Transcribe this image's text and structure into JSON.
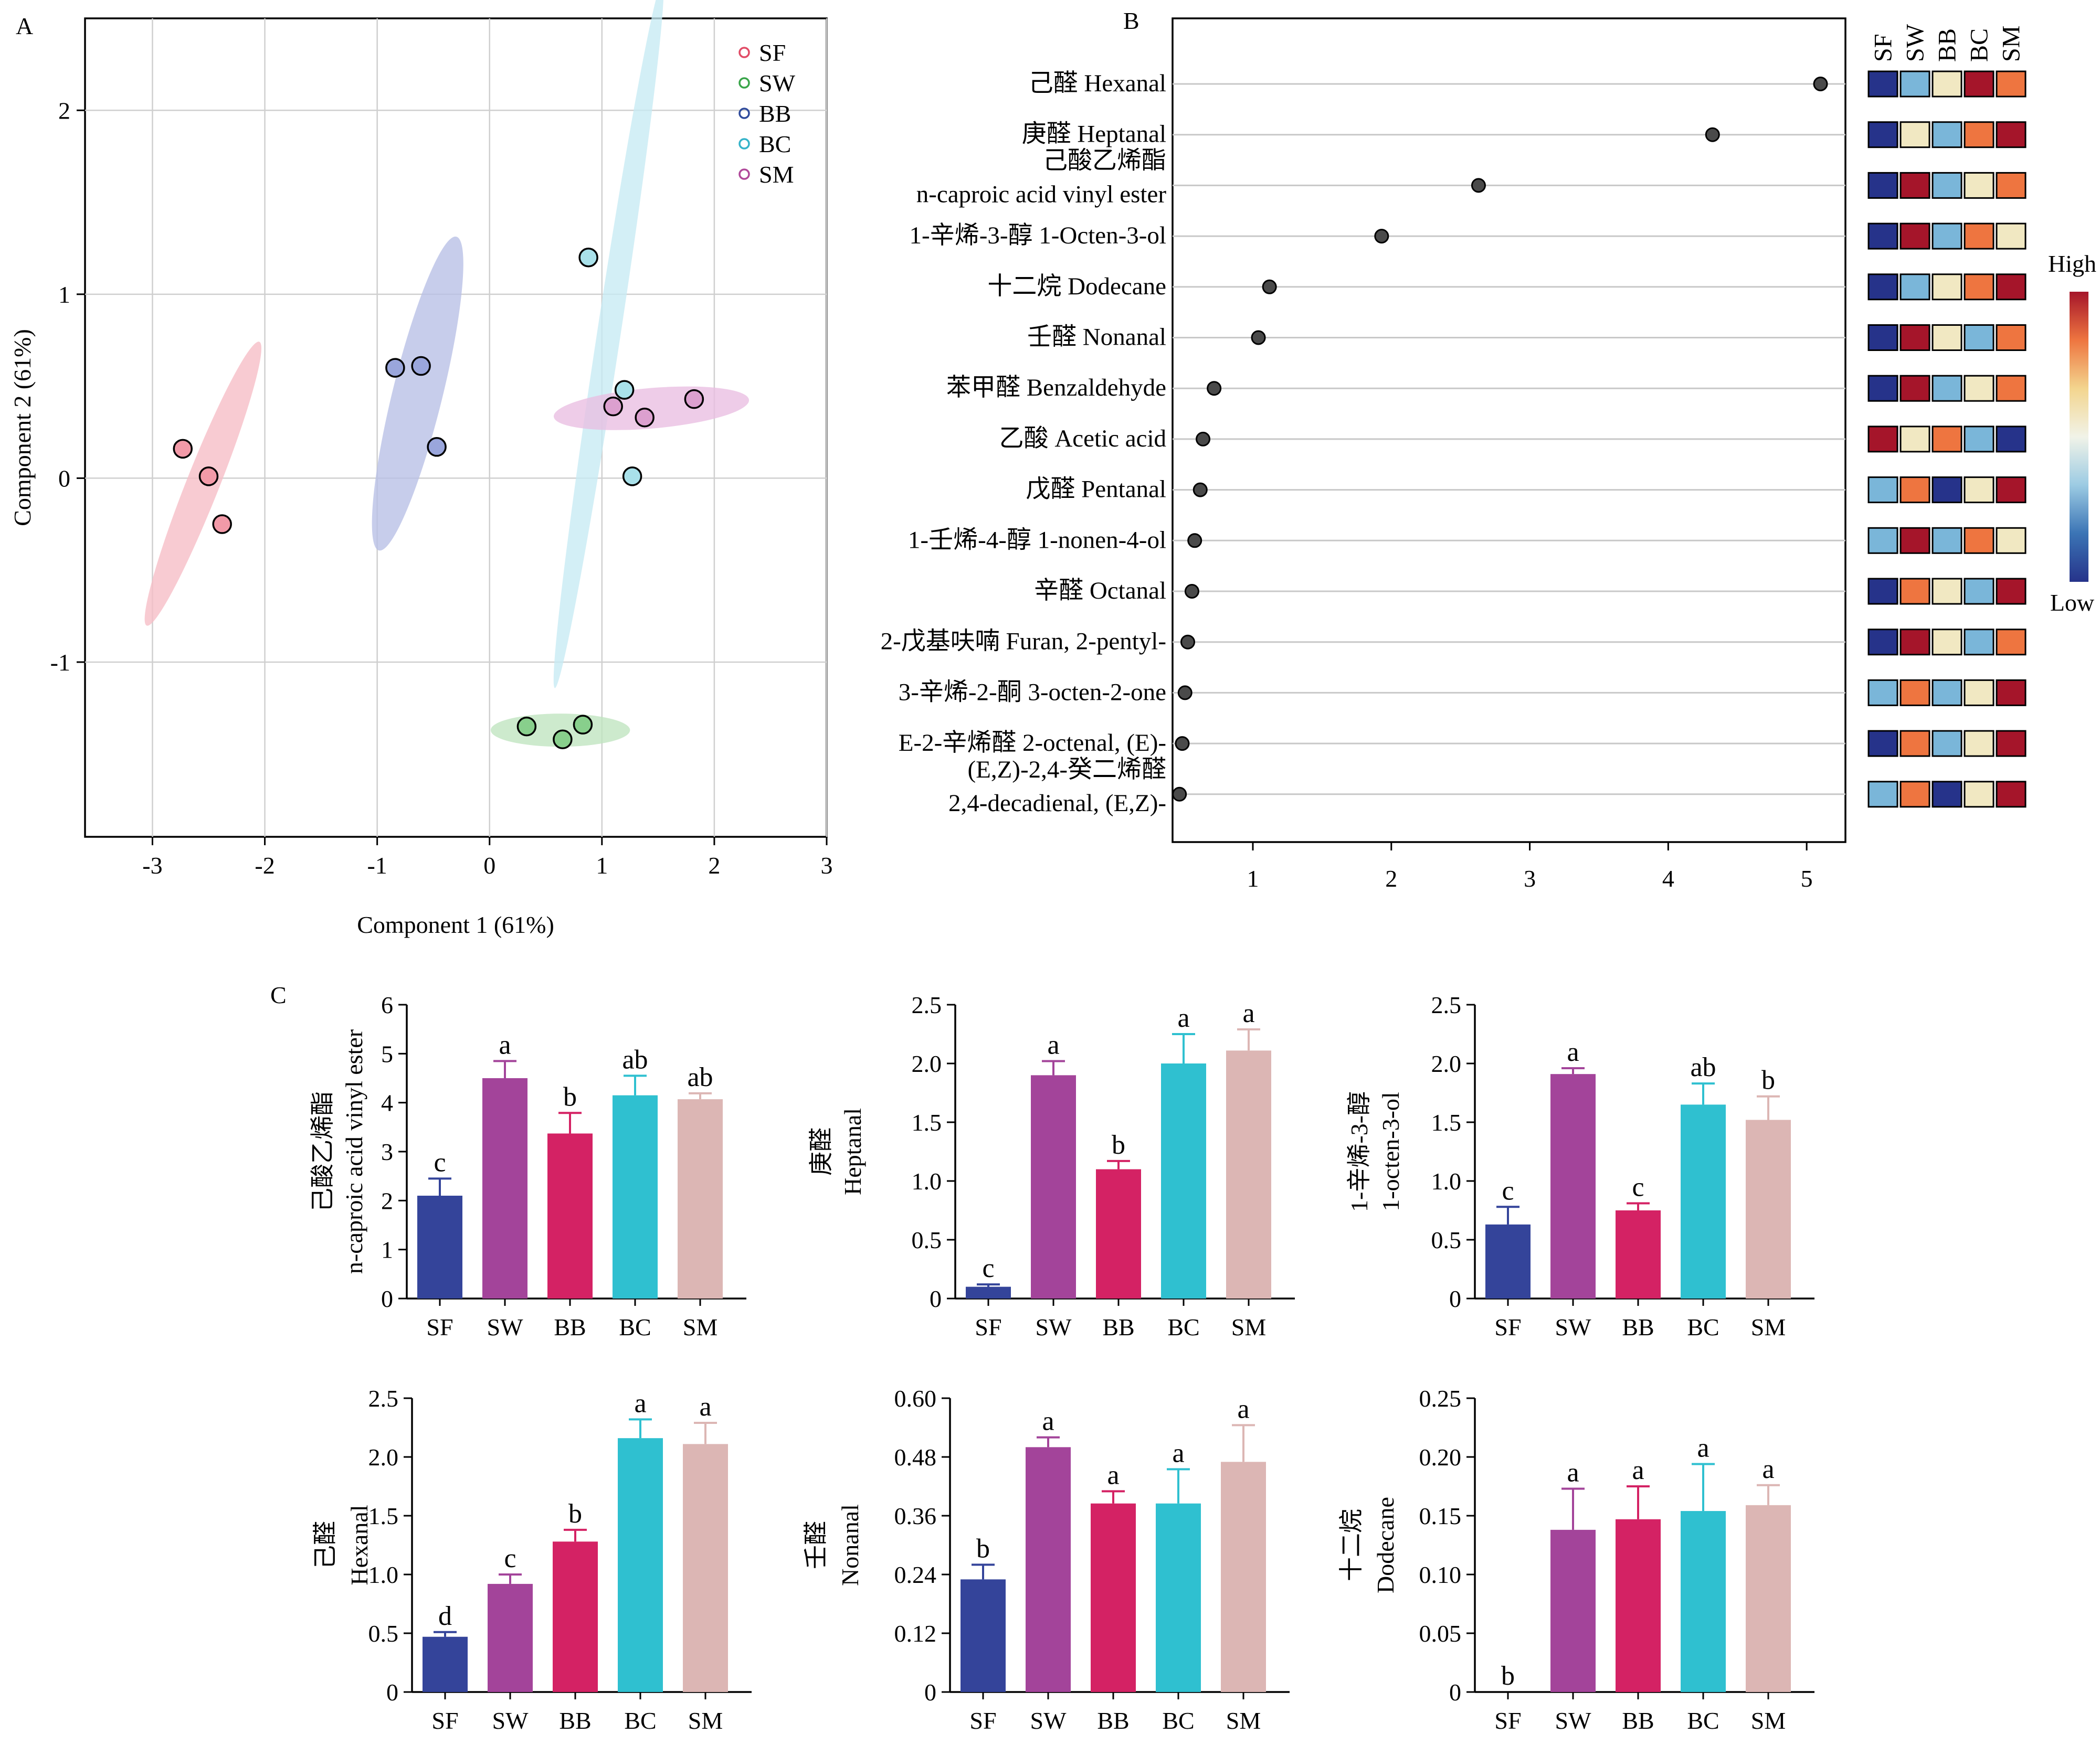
{
  "panels": {
    "A": {
      "label": "A"
    },
    "B": {
      "label": "B"
    },
    "C": {
      "label": "C"
    }
  },
  "heatmap": {
    "groups": [
      "SF",
      "SW",
      "BB",
      "BC",
      "SM"
    ],
    "high": "High",
    "low": "Low",
    "palette": {
      "1": "#26338a",
      "2": "#7ab6d9",
      "3": "#f1e8c2",
      "4": "#ee7540",
      "5": "#a5152a"
    },
    "gradient": [
      "#a5152a",
      "#ee7540",
      "#f3d58e",
      "#f1f3e8",
      "#9ccbe3",
      "#3b74b5",
      "#26338a"
    ],
    "rows": [
      [
        1,
        2,
        3,
        5,
        4
      ],
      [
        1,
        3,
        2,
        4,
        5
      ],
      [
        1,
        5,
        2,
        3,
        4
      ],
      [
        1,
        5,
        2,
        4,
        3
      ],
      [
        1,
        2,
        3,
        4,
        5
      ],
      [
        1,
        5,
        3,
        2,
        4
      ],
      [
        1,
        5,
        2,
        3,
        4
      ],
      [
        5,
        3,
        4,
        2,
        1
      ],
      [
        2,
        4,
        1,
        3,
        5
      ],
      [
        2,
        5,
        2,
        4,
        3
      ],
      [
        1,
        4,
        3,
        2,
        5
      ],
      [
        1,
        5,
        3,
        2,
        4
      ],
      [
        2,
        4,
        2,
        3,
        5
      ],
      [
        1,
        4,
        2,
        3,
        5
      ],
      [
        2,
        4,
        1,
        3,
        5
      ]
    ]
  },
  "chart_data": [
    {
      "type": "scatter",
      "panel": "A",
      "xlabel": "Component 1 (61%)",
      "ylabel": "Component 2 (61%)",
      "xlim": [
        -3.6,
        3
      ],
      "ylim": [
        -1.95,
        2.5
      ],
      "xticks": [
        -3,
        -2,
        -1,
        0,
        1,
        2,
        3
      ],
      "yticks": [
        -1,
        0,
        1,
        2
      ],
      "grid": true,
      "legend_position": "top-right",
      "series": [
        {
          "name": "SF",
          "color": "#e14b66",
          "fill": "#f29aa8",
          "ellipse": "#f6bcc5",
          "x": [
            -2.73,
            -2.5,
            -2.38
          ],
          "y": [
            0.16,
            0.01,
            -0.25
          ],
          "ellipse_params": {
            "cx": -2.55,
            "cy": -0.03,
            "rx": 0.92,
            "ry": 0.12,
            "angle": 57
          }
        },
        {
          "name": "SW",
          "color": "#3aa54a",
          "fill": "#88cf8c",
          "ellipse": "#bfe4bf",
          "x": [
            0.33,
            0.65,
            0.83
          ],
          "y": [
            -1.35,
            -1.42,
            -1.34
          ],
          "ellipse_params": {
            "cx": 0.63,
            "cy": -1.37,
            "rx": 0.62,
            "ry": 0.09,
            "angle": 0
          }
        },
        {
          "name": "BB",
          "color": "#2f4b9c",
          "fill": "#9aa6dc",
          "ellipse": "#b7bfe6",
          "x": [
            -0.84,
            -0.61,
            -0.47
          ],
          "y": [
            0.6,
            0.61,
            0.17
          ],
          "ellipse_params": {
            "cx": -0.64,
            "cy": 0.46,
            "rx": 0.92,
            "ry": 0.2,
            "angle": 68
          }
        },
        {
          "name": "BC",
          "color": "#35b3c9",
          "fill": "#a9e1ea",
          "ellipse": "#c6ebf4",
          "x": [
            0.88,
            1.2,
            1.27
          ],
          "y": [
            1.2,
            0.48,
            0.01
          ],
          "ellipse_params": {
            "cx": 1.06,
            "cy": 0.78,
            "rx": 1.98,
            "ry": 0.1,
            "angle": 76
          }
        },
        {
          "name": "SM",
          "color": "#b0489a",
          "fill": "#dca0cf",
          "ellipse": "#e9bee1",
          "x": [
            1.1,
            1.38,
            1.82
          ],
          "y": [
            0.39,
            0.33,
            0.43
          ],
          "ellipse_params": {
            "cx": 1.44,
            "cy": 0.38,
            "rx": 0.87,
            "ry": 0.11,
            "angle": 3
          }
        }
      ]
    },
    {
      "type": "scatter",
      "panel": "B",
      "xlim": [
        0.42,
        5.28
      ],
      "xticks": [
        1,
        2,
        3,
        4,
        5
      ],
      "grid": false,
      "categories": [
        [
          "己醛 Hexanal"
        ],
        [
          "庚醛 Heptanal"
        ],
        [
          "己酸乙烯酯",
          "n-caproic acid vinyl ester"
        ],
        [
          "1-辛烯-3-醇 1-Octen-3-ol"
        ],
        [
          "十二烷 Dodecane"
        ],
        [
          "壬醛 Nonanal"
        ],
        [
          "苯甲醛 Benzaldehyde"
        ],
        [
          "乙酸 Acetic acid"
        ],
        [
          "戊醛 Pentanal"
        ],
        [
          "1-壬烯-4-醇 1-nonen-4-ol"
        ],
        [
          "辛醛 Octanal"
        ],
        [
          "2-戊基呋喃 Furan, 2-pentyl-"
        ],
        [
          "3-辛烯-2-酮 3-octen-2-one"
        ],
        [
          "E-2-辛烯醛 2-octenal, (E)-"
        ],
        [
          "(E,Z)-2,4-癸二烯醛",
          "2,4-decadienal, (E,Z)-"
        ]
      ],
      "values": [
        5.1,
        4.32,
        2.63,
        1.93,
        1.12,
        1.04,
        0.72,
        0.64,
        0.62,
        0.58,
        0.56,
        0.53,
        0.51,
        0.49,
        0.47
      ]
    },
    {
      "type": "bar",
      "panel": "C",
      "ylabel": [
        "己酸乙烯酯",
        "n-caproic acid vinyl ester"
      ],
      "categories": [
        "SF",
        "SW",
        "BB",
        "BC",
        "SM"
      ],
      "values": [
        2.1,
        4.5,
        3.37,
        4.15,
        4.07
      ],
      "errors": [
        0.35,
        0.35,
        0.42,
        0.4,
        0.12
      ],
      "letters": [
        "c",
        "a",
        "b",
        "ab",
        "ab"
      ],
      "ylim": [
        0,
        6
      ],
      "yticks": [
        "0",
        "1",
        "2",
        "3",
        "4",
        "5",
        "6"
      ]
    },
    {
      "type": "bar",
      "panel": "C",
      "ylabel": [
        "庚醛",
        "Heptanal"
      ],
      "categories": [
        "SF",
        "SW",
        "BB",
        "BC",
        "SM"
      ],
      "values": [
        0.1,
        1.9,
        1.1,
        2.0,
        2.11
      ],
      "errors": [
        0.02,
        0.12,
        0.07,
        0.25,
        0.18
      ],
      "letters": [
        "c",
        "a",
        "b",
        "a",
        "a"
      ],
      "ylim": [
        0,
        2.5
      ],
      "yticks": [
        "0",
        "0.5",
        "1.0",
        "1.5",
        "2.0",
        "2.5"
      ]
    },
    {
      "type": "bar",
      "panel": "C",
      "ylabel": [
        "1-辛烯-3-醇",
        "1-octen-3-ol"
      ],
      "categories": [
        "SF",
        "SW",
        "BB",
        "BC",
        "SM"
      ],
      "values": [
        0.63,
        1.91,
        0.75,
        1.65,
        1.52
      ],
      "errors": [
        0.15,
        0.05,
        0.06,
        0.18,
        0.2
      ],
      "letters": [
        "c",
        "a",
        "c",
        "ab",
        "b"
      ],
      "ylim": [
        0,
        2.5
      ],
      "yticks": [
        "0",
        "0.5",
        "1.0",
        "1.5",
        "2.0",
        "2.5"
      ]
    },
    {
      "type": "bar",
      "panel": "C",
      "ylabel": [
        "己醛",
        "Hexanal"
      ],
      "categories": [
        "SF",
        "SW",
        "BB",
        "BC",
        "SM"
      ],
      "values": [
        0.47,
        0.92,
        1.28,
        2.16,
        2.11
      ],
      "errors": [
        0.04,
        0.08,
        0.1,
        0.16,
        0.18
      ],
      "letters": [
        "d",
        "c",
        "b",
        "a",
        "a"
      ],
      "ylim": [
        0,
        2.5
      ],
      "yticks": [
        "0",
        "0.5",
        "1.0",
        "1.5",
        "2.0",
        "2.5"
      ]
    },
    {
      "type": "bar",
      "panel": "C",
      "ylabel": [
        "壬醛",
        "Nonanal"
      ],
      "categories": [
        "SF",
        "SW",
        "BB",
        "BC",
        "SM"
      ],
      "values": [
        0.23,
        0.5,
        0.385,
        0.385,
        0.47
      ],
      "errors": [
        0.03,
        0.02,
        0.025,
        0.07,
        0.075
      ],
      "letters": [
        "b",
        "a",
        "a",
        "a",
        "a"
      ],
      "ylim": [
        0,
        0.6
      ],
      "yticks": [
        "0",
        "0.12",
        "0.24",
        "0.36",
        "0.48",
        "0.60"
      ]
    },
    {
      "type": "bar",
      "panel": "C",
      "ylabel": [
        "十二烷",
        "Dodecane"
      ],
      "categories": [
        "SF",
        "SW",
        "BB",
        "BC",
        "SM"
      ],
      "values": [
        0,
        0.138,
        0.147,
        0.154,
        0.159
      ],
      "errors": [
        0,
        0.035,
        0.028,
        0.04,
        0.017
      ],
      "letters": [
        "b",
        "a",
        "a",
        "a",
        "a"
      ],
      "ylim": [
        0,
        0.25
      ],
      "yticks": [
        "0",
        "0.05",
        "0.10",
        "0.15",
        "0.20",
        "0.25"
      ]
    }
  ],
  "bar_colors": [
    "#34449a",
    "#a3449a",
    "#d42264",
    "#2fc0d0",
    "#dcb6b4"
  ]
}
